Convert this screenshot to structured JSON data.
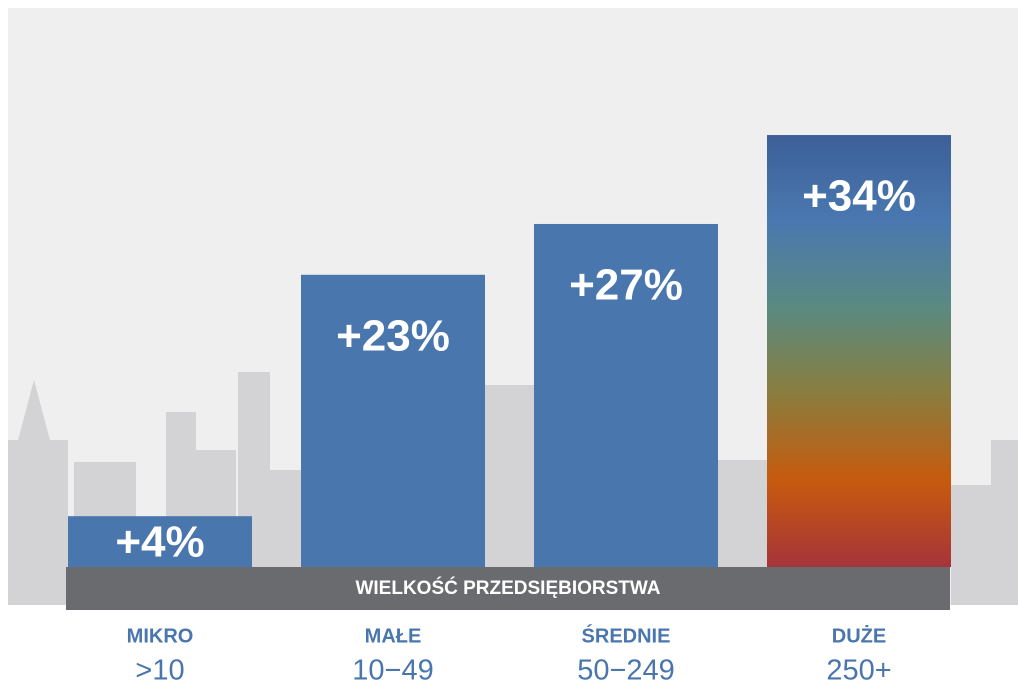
{
  "chart_data": {
    "type": "bar",
    "x_label": "WIELKOŚĆ PRZEDSIĘBIORSTWA",
    "categories": [
      "MIKRO",
      "MAŁE",
      "ŚREDNIE",
      "DUŻE"
    ],
    "subcategories": [
      ">10",
      "10−49",
      "50−249",
      "250+"
    ],
    "values": [
      4,
      23,
      27,
      34
    ],
    "value_labels": [
      "+4%",
      "+23%",
      "+27%",
      "+34%"
    ],
    "colors": [
      "#4a76ae",
      "#4a76ae",
      "#4a76ae",
      "gradient"
    ],
    "gradient": [
      "#3d5f98",
      "#4a78b0",
      "#5a8a80",
      "#8a7d3e",
      "#c75a0e",
      "#a5343a"
    ],
    "ylim": [
      0,
      44
    ]
  }
}
